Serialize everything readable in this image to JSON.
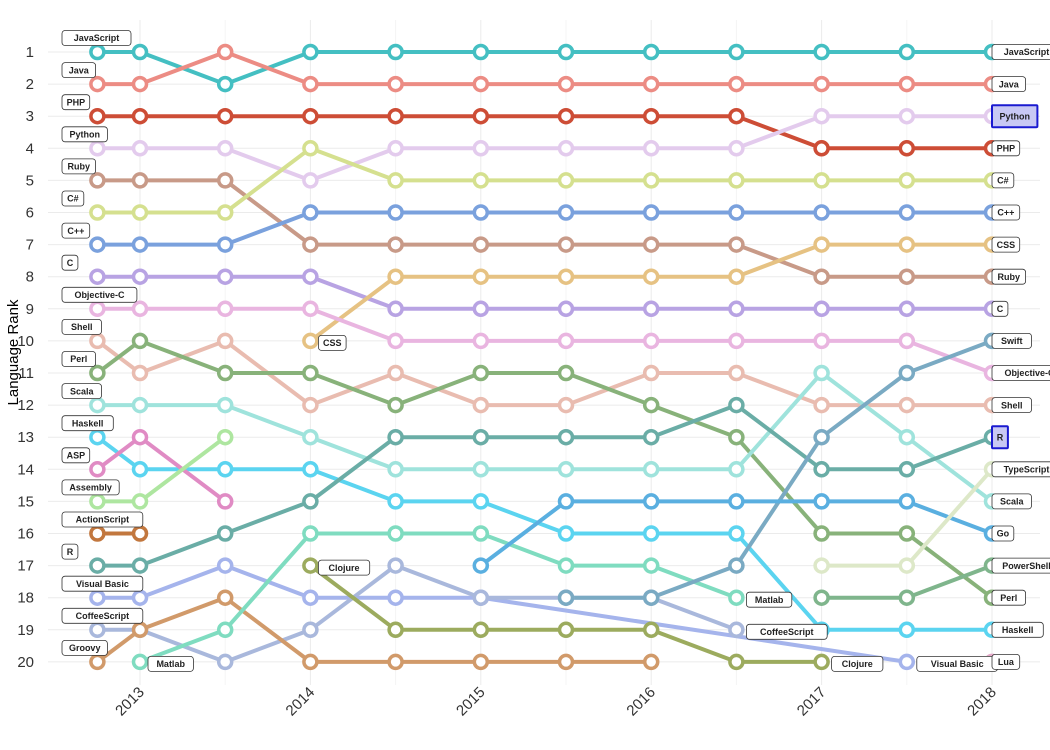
{
  "chart_data": {
    "type": "line",
    "title": "",
    "xlabel": "",
    "ylabel": "Language Rank",
    "x_ticks": [
      "2013",
      "2014",
      "2015",
      "2016",
      "2017",
      "2018"
    ],
    "y_ticks": [
      1,
      2,
      3,
      4,
      5,
      6,
      7,
      8,
      9,
      10,
      11,
      12,
      13,
      14,
      15,
      16,
      17,
      18,
      19,
      20
    ],
    "ylim": [
      20,
      1
    ],
    "grid": true,
    "highlighted": [
      "Python",
      "R"
    ],
    "x": [
      2012.75,
      2013.0,
      2013.5,
      2014.0,
      2014.5,
      2015.0,
      2015.5,
      2016.0,
      2016.5,
      2017.0,
      2017.5,
      2018.0
    ],
    "series": [
      {
        "name": "JavaScript",
        "color": "#44bfc2",
        "values": [
          1,
          1,
          2,
          1,
          1,
          1,
          1,
          1,
          1,
          1,
          1,
          1
        ]
      },
      {
        "name": "Java",
        "color": "#ec8c84",
        "values": [
          2,
          2,
          1,
          2,
          2,
          2,
          2,
          2,
          2,
          2,
          2,
          2
        ]
      },
      {
        "name": "PHP",
        "color": "#cd4d36",
        "values": [
          3,
          3,
          3,
          3,
          3,
          3,
          3,
          3,
          3,
          4,
          4,
          4
        ]
      },
      {
        "name": "Python",
        "color": "#e3cbed",
        "values": [
          4,
          4,
          4,
          5,
          4,
          4,
          4,
          4,
          4,
          3,
          3,
          3
        ]
      },
      {
        "name": "Ruby",
        "color": "#c89a88",
        "values": [
          5,
          5,
          5,
          7,
          7,
          7,
          7,
          7,
          7,
          8,
          8,
          8
        ]
      },
      {
        "name": "C#",
        "color": "#d5e08f",
        "values": [
          6,
          6,
          6,
          4,
          5,
          5,
          5,
          5,
          5,
          5,
          5,
          5
        ]
      },
      {
        "name": "C++",
        "color": "#7aa1dd",
        "values": [
          7,
          7,
          7,
          6,
          6,
          6,
          6,
          6,
          6,
          6,
          6,
          6
        ]
      },
      {
        "name": "C",
        "color": "#b8a3e3",
        "values": [
          8,
          8,
          8,
          8,
          9,
          9,
          9,
          9,
          9,
          9,
          9,
          9
        ]
      },
      {
        "name": "CSS",
        "color": "#e6c283",
        "values": [
          null,
          null,
          null,
          10,
          8,
          8,
          8,
          8,
          8,
          7,
          7,
          7
        ]
      },
      {
        "name": "Objective-C",
        "color": "#e9b5e0",
        "values": [
          9,
          9,
          9,
          9,
          10,
          10,
          10,
          10,
          10,
          10,
          10,
          11
        ]
      },
      {
        "name": "Shell",
        "color": "#e9bcb0",
        "values": [
          10,
          11,
          10,
          12,
          11,
          12,
          12,
          11,
          11,
          12,
          12,
          12
        ]
      },
      {
        "name": "Perl",
        "color": "#88b27a",
        "values": [
          11,
          10,
          11,
          11,
          12,
          11,
          11,
          12,
          13,
          16,
          16,
          18
        ]
      },
      {
        "name": "Scala",
        "color": "#9fe3dc",
        "values": [
          12,
          12,
          12,
          13,
          14,
          14,
          14,
          14,
          14,
          11,
          13,
          15
        ]
      },
      {
        "name": "Haskell",
        "color": "#5bd4f0",
        "values": [
          13,
          14,
          14,
          14,
          15,
          15,
          16,
          16,
          16,
          19,
          19,
          19
        ]
      },
      {
        "name": "ASP",
        "color": "#e08bc4",
        "values": [
          14,
          13,
          15,
          null,
          null,
          null,
          null,
          null,
          null,
          null,
          null,
          null
        ]
      },
      {
        "name": "Assembly",
        "color": "#aee6a0",
        "values": [
          15,
          15,
          13,
          null,
          null,
          null,
          null,
          null,
          null,
          null,
          null,
          null
        ]
      },
      {
        "name": "ActionScript",
        "color": "#c2773e",
        "values": [
          16,
          16,
          null,
          null,
          null,
          null,
          null,
          null,
          null,
          null,
          null,
          null
        ]
      },
      {
        "name": "R",
        "color": "#6aada6",
        "values": [
          17,
          17,
          16,
          15,
          13,
          13,
          13,
          13,
          12,
          14,
          14,
          13
        ]
      },
      {
        "name": "Visual Basic",
        "color": "#a5b4ec",
        "values": [
          18,
          18,
          17,
          18,
          18,
          18,
          null,
          null,
          null,
          null,
          20,
          null
        ]
      },
      {
        "name": "CoffeeScript",
        "color": "#a9b8dc",
        "values": [
          19,
          19,
          20,
          19,
          17,
          18,
          18,
          18,
          19,
          null,
          null,
          null
        ]
      },
      {
        "name": "Groovy",
        "color": "#d19a6a",
        "values": [
          20,
          19,
          18,
          20,
          20,
          20,
          20,
          20,
          null,
          null,
          null,
          null
        ]
      },
      {
        "name": "Matlab",
        "color": "#7fdcc0",
        "values": [
          null,
          20,
          19,
          16,
          16,
          16,
          17,
          17,
          18,
          null,
          null,
          null
        ]
      },
      {
        "name": "Clojure",
        "color": "#9cab5e",
        "values": [
          null,
          null,
          null,
          17,
          19,
          19,
          19,
          19,
          20,
          20,
          null,
          null
        ]
      },
      {
        "name": "Swift",
        "color": "#7aaac3",
        "values": [
          null,
          null,
          null,
          null,
          null,
          null,
          18,
          18,
          17,
          13,
          11,
          10
        ]
      },
      {
        "name": "Go",
        "color": "#5aafe0",
        "values": [
          null,
          null,
          null,
          null,
          null,
          17,
          15,
          15,
          15,
          15,
          15,
          16
        ]
      },
      {
        "name": "TypeScript",
        "color": "#dde8c8",
        "values": [
          null,
          null,
          null,
          null,
          null,
          null,
          null,
          null,
          null,
          17,
          17,
          14
        ]
      },
      {
        "name": "PowerShell",
        "color": "#7fb58c",
        "values": [
          null,
          null,
          null,
          null,
          null,
          null,
          null,
          null,
          null,
          18,
          18,
          17
        ]
      },
      {
        "name": "Lua",
        "color": "#e4a8c8",
        "values": [
          null,
          null,
          null,
          null,
          null,
          null,
          null,
          null,
          null,
          null,
          null,
          20
        ]
      }
    ]
  }
}
